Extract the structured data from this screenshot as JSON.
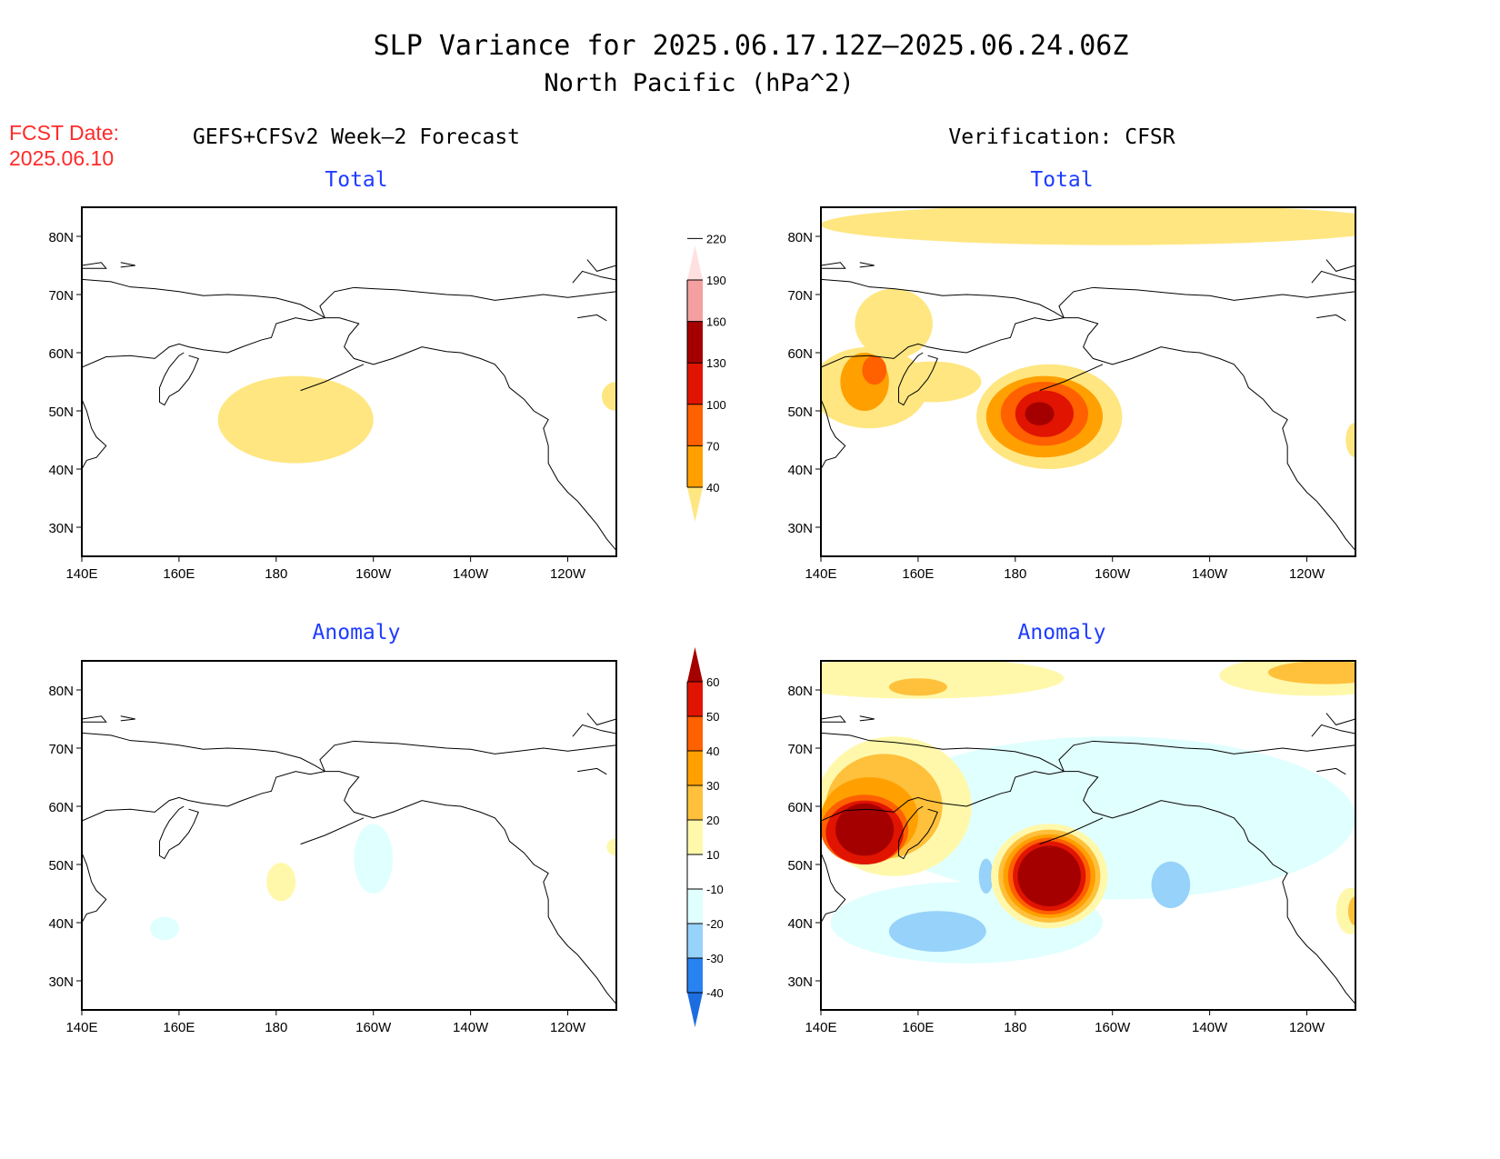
{
  "header": {
    "title_line1": "SLP Variance for 2025.06.17.12Z–2025.06.24.06Z",
    "title_line2": "North Pacific (hPa^2)",
    "fcst_label": "FCST Date:",
    "fcst_date": "2025.06.10",
    "left_column_title": "GEFS+CFSv2 Week–2 Forecast",
    "right_column_title": "Verification: CFSR"
  },
  "colors": {
    "title_text": "#000000",
    "fcst_text": "#ff2a2a",
    "panel_title": "#1f3cff"
  },
  "chart_data": [
    {
      "type": "heatmap",
      "id": "forecast-total",
      "title": "Total",
      "column": "GEFS+CFSv2 Week-2 Forecast",
      "units": "hPa^2",
      "xlabel": "",
      "ylabel": "",
      "lon_range": [
        140,
        250
      ],
      "lat_range": [
        25,
        85
      ],
      "x_ticks": [
        "140E",
        "160E",
        "180",
        "160W",
        "140W",
        "120W"
      ],
      "y_ticks": [
        "30N",
        "40N",
        "50N",
        "60N",
        "70N",
        "80N"
      ],
      "colorbar": "total",
      "features": [
        {
          "label": "40-70",
          "center": [
            184,
            48.5
          ],
          "radius": [
            16,
            7.5
          ]
        },
        {
          "label": "40-70",
          "center": [
            250,
            52.5
          ],
          "radius": [
            3,
            2.5
          ]
        }
      ]
    },
    {
      "type": "heatmap",
      "id": "verification-total",
      "title": "Total",
      "column": "Verification: CFSR",
      "units": "hPa^2",
      "lon_range": [
        140,
        250
      ],
      "lat_range": [
        25,
        85
      ],
      "x_ticks": [
        "140E",
        "160E",
        "180",
        "160W",
        "140W",
        "120W"
      ],
      "y_ticks": [
        "30N",
        "40N",
        "50N",
        "60N",
        "70N",
        "80N"
      ],
      "colorbar": "total",
      "features": [
        {
          "label": "40-70",
          "center": [
            200,
            82
          ],
          "radius": [
            60,
            3.5
          ]
        },
        {
          "label": "40-70",
          "center": [
            155,
            65
          ],
          "radius": [
            8,
            6
          ]
        },
        {
          "label": "40-70",
          "center": [
            150,
            54
          ],
          "radius": [
            12,
            7
          ]
        },
        {
          "label": "40-70",
          "center": [
            163,
            55
          ],
          "radius": [
            10,
            3.5
          ]
        },
        {
          "label": "70-100",
          "center": [
            149,
            55
          ],
          "radius": [
            5,
            5
          ]
        },
        {
          "label": "100-130",
          "center": [
            151,
            57
          ],
          "radius": [
            2.5,
            2.5
          ]
        },
        {
          "label": "40-70",
          "center": [
            187,
            49
          ],
          "radius": [
            15,
            9
          ]
        },
        {
          "label": "70-100",
          "center": [
            186,
            49
          ],
          "radius": [
            12,
            7
          ]
        },
        {
          "label": "100-130",
          "center": [
            186,
            49.5
          ],
          "radius": [
            9,
            5.5
          ]
        },
        {
          "label": "130-160",
          "center": [
            186,
            49.5
          ],
          "radius": [
            6,
            4
          ]
        },
        {
          "label": "160-190",
          "center": [
            185,
            49.5
          ],
          "radius": [
            3,
            2
          ]
        },
        {
          "label": "40-70",
          "center": [
            250,
            45
          ],
          "radius": [
            2,
            3
          ]
        }
      ]
    },
    {
      "type": "heatmap",
      "id": "forecast-anomaly",
      "title": "Anomaly",
      "column": "GEFS+CFSv2 Week-2 Forecast",
      "units": "hPa^2",
      "lon_range": [
        140,
        250
      ],
      "lat_range": [
        25,
        85
      ],
      "x_ticks": [
        "140E",
        "160E",
        "180",
        "160W",
        "140W",
        "120W"
      ],
      "y_ticks": [
        "30N",
        "40N",
        "50N",
        "60N",
        "70N",
        "80N"
      ],
      "colorbar": "anomaly",
      "features": [
        {
          "label": "10-20",
          "center": [
            181,
            47
          ],
          "radius": [
            3,
            3.3
          ]
        },
        {
          "label": "-20--10",
          "center": [
            200,
            51
          ],
          "radius": [
            4,
            6
          ]
        },
        {
          "label": "-20--10",
          "center": [
            157,
            39
          ],
          "radius": [
            3,
            2
          ]
        },
        {
          "label": "10-20",
          "center": [
            250,
            53
          ],
          "radius": [
            2,
            1.5
          ]
        }
      ]
    },
    {
      "type": "heatmap",
      "id": "verification-anomaly",
      "title": "Anomaly",
      "column": "Verification: CFSR",
      "units": "hPa^2",
      "lon_range": [
        140,
        250
      ],
      "lat_range": [
        25,
        85
      ],
      "x_ticks": [
        "140E",
        "160E",
        "180",
        "160W",
        "140W",
        "120W"
      ],
      "y_ticks": [
        "30N",
        "40N",
        "50N",
        "60N",
        "70N",
        "80N"
      ],
      "colorbar": "anomaly",
      "features": [
        {
          "label": "-20--10",
          "center": [
            200,
            58
          ],
          "radius": [
            50,
            14
          ]
        },
        {
          "label": "-20--10",
          "center": [
            170,
            40
          ],
          "radius": [
            28,
            7
          ]
        },
        {
          "label": "-30--20",
          "center": [
            164,
            38.5
          ],
          "radius": [
            10,
            3.5
          ]
        },
        {
          "label": "-30--20",
          "center": [
            212,
            46.5
          ],
          "radius": [
            4,
            4
          ]
        },
        {
          "label": "-30--20",
          "center": [
            174,
            48
          ],
          "radius": [
            1.5,
            3
          ]
        },
        {
          "label": "10-20",
          "center": [
            160,
            82
          ],
          "radius": [
            30,
            3.5
          ]
        },
        {
          "label": "20-30",
          "center": [
            160,
            80.5
          ],
          "radius": [
            6,
            1.5
          ]
        },
        {
          "label": "10-20",
          "center": [
            242,
            82.5
          ],
          "radius": [
            20,
            3.5
          ]
        },
        {
          "label": "20-30",
          "center": [
            244,
            83
          ],
          "radius": [
            12,
            2
          ]
        },
        {
          "label": "10-20",
          "center": [
            155,
            60
          ],
          "radius": [
            16,
            12
          ]
        },
        {
          "label": "20-30",
          "center": [
            153,
            60
          ],
          "radius": [
            12,
            9
          ]
        },
        {
          "label": "30-40",
          "center": [
            150,
            58
          ],
          "radius": [
            10,
            7
          ]
        },
        {
          "label": "40-50",
          "center": [
            149,
            56
          ],
          "radius": [
            9,
            6
          ]
        },
        {
          "label": "50-60",
          "center": [
            149,
            55.5
          ],
          "radius": [
            8,
            5.5
          ]
        },
        {
          "label": ">60",
          "center": [
            149,
            56
          ],
          "radius": [
            6,
            4.5
          ]
        },
        {
          "label": "10-20",
          "center": [
            187,
            48
          ],
          "radius": [
            12,
            9
          ]
        },
        {
          "label": "20-30",
          "center": [
            187,
            48
          ],
          "radius": [
            10.5,
            8
          ]
        },
        {
          "label": "30-40",
          "center": [
            187,
            48
          ],
          "radius": [
            9.5,
            7.2
          ]
        },
        {
          "label": "40-50",
          "center": [
            187,
            48
          ],
          "radius": [
            8.5,
            6.6
          ]
        },
        {
          "label": "50-60",
          "center": [
            187,
            48
          ],
          "radius": [
            7.5,
            6
          ]
        },
        {
          "label": ">60",
          "center": [
            187,
            48
          ],
          "radius": [
            6.5,
            5.2
          ]
        },
        {
          "label": "10-20",
          "center": [
            249,
            42
          ],
          "radius": [
            3,
            4
          ]
        },
        {
          "label": "20-30",
          "center": [
            250,
            42
          ],
          "radius": [
            1.5,
            2.5
          ]
        }
      ]
    }
  ],
  "colorbars": {
    "total": {
      "levels": [
        "40",
        "70",
        "100",
        "130",
        "160",
        "190",
        "220"
      ],
      "bins": [
        {
          "label": "40-70",
          "color": "#ffe680"
        },
        {
          "label": "70-100",
          "color": "#ffa000"
        },
        {
          "label": "100-130",
          "color": "#ff6000"
        },
        {
          "label": "130-160",
          "color": "#e01400"
        },
        {
          "label": "160-190",
          "color": "#a50000"
        },
        {
          "label": "190-220",
          "color": "#f4a0a0"
        },
        {
          "label": ">220",
          "color": "#ffe0e0"
        }
      ]
    },
    "anomaly": {
      "levels": [
        "-40",
        "-30",
        "-20",
        "-10",
        "10",
        "20",
        "30",
        "40",
        "50",
        "60"
      ],
      "bins": [
        {
          "label": "<-40",
          "color": "#1c6ee0"
        },
        {
          "label": "-40--30",
          "color": "#2882f0"
        },
        {
          "label": "-30--20",
          "color": "#96d2fa"
        },
        {
          "label": "-20--10",
          "color": "#e0ffff"
        },
        {
          "label": "-10-10",
          "color": "#ffffff"
        },
        {
          "label": "10-20",
          "color": "#fff8aa"
        },
        {
          "label": "20-30",
          "color": "#ffc03c"
        },
        {
          "label": "30-40",
          "color": "#ffa000"
        },
        {
          "label": "40-50",
          "color": "#ff6000"
        },
        {
          "label": "50-60",
          "color": "#e01400"
        },
        {
          "label": ">60",
          "color": "#a50000"
        }
      ]
    }
  }
}
